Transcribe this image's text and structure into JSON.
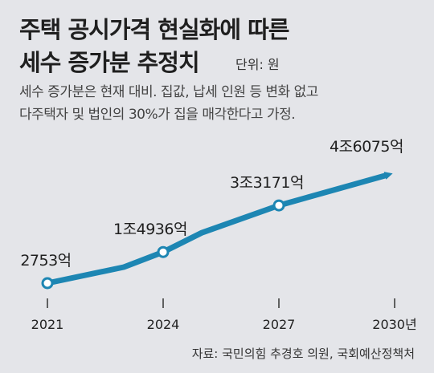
{
  "header": {
    "title_line1": "주택 공시가격 현실화에 따른",
    "title_line2": "세수 증가분 추정치",
    "unit": "단위: 원",
    "note_line1": "세수 증가분은 현재 대비. 집값, 납세 인원 등 변화 없고",
    "note_line2": "다주택자 및 법인의 30%가 집을 매각한다고 가정."
  },
  "source": "자료: 국민의힘 추경호 의원, 국회예산정책처",
  "colors": {
    "line": "#1d86b3",
    "background": "#e4e5e9",
    "text": "#222222"
  },
  "chart_data": {
    "type": "line",
    "title": "주택 공시가격 현실화에 따른 세수 증가분 추정치",
    "x": [
      "2021",
      "2024",
      "2027",
      "2030년"
    ],
    "values": [
      275300000000,
      1493600000000,
      3317100000000,
      4607500000000
    ],
    "value_labels": [
      "2753억",
      "1조4936억",
      "3조3171억",
      "4조6075억"
    ],
    "unit": "원",
    "markers": [
      true,
      true,
      true,
      false
    ],
    "end_arrow": true
  }
}
